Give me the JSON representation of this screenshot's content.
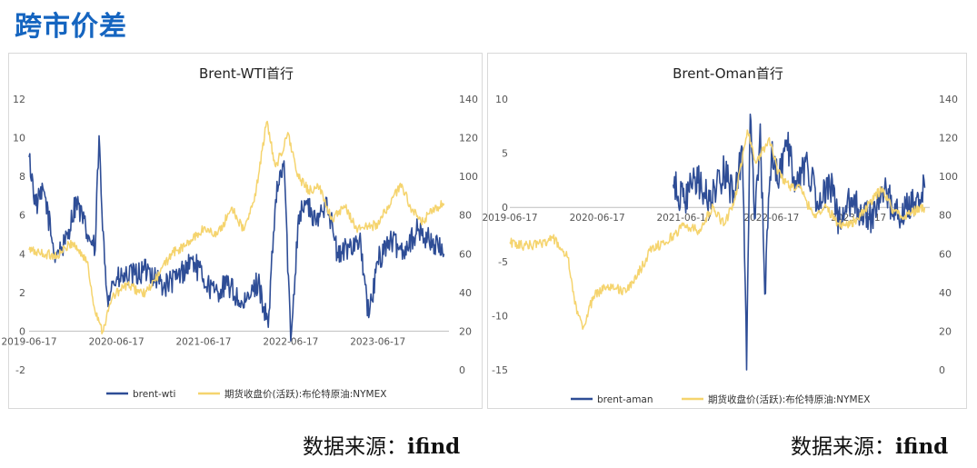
{
  "page": {
    "heading": "跨市价差",
    "source_left": "数据来源：",
    "source_left_name": "ifind",
    "source_right": "数据来源：",
    "source_right_name": "ifind"
  },
  "colors": {
    "blue": "#2e4d96",
    "gold": "#f5d46e",
    "heading": "#1565c0"
  },
  "chart_data": [
    {
      "type": "line",
      "title": "Brent-WTI首行",
      "xlabel": "",
      "ylabel": "",
      "x_ticks": [
        "2019-06-17",
        "2020-06-17",
        "2021-06-17",
        "2022-06-17",
        "2023-06-17"
      ],
      "y_left_ticks": [
        "12",
        "10",
        "8",
        "6",
        "4",
        "2",
        "0",
        "-2"
      ],
      "y_right_ticks": [
        "140",
        "120",
        "100",
        "80",
        "60",
        "40",
        "20",
        "0"
      ],
      "ylim_left": [
        -2,
        12
      ],
      "ylim_right": [
        0,
        140
      ],
      "grid": false,
      "legend_position": "bottom",
      "series": [
        {
          "name": "brent-wti",
          "axis": "left",
          "color": "#2e4d96",
          "x": [
            "2019-06-17",
            "2019-07-15",
            "2019-08-20",
            "2019-10-01",
            "2019-11-15",
            "2020-01-01",
            "2020-02-15",
            "2020-03-20",
            "2020-04-05",
            "2020-04-20",
            "2020-05-10",
            "2020-06-01",
            "2020-07-01",
            "2020-09-01",
            "2020-11-01",
            "2021-01-01",
            "2021-03-01",
            "2021-05-01",
            "2021-06-17",
            "2021-08-01",
            "2021-10-01",
            "2021-12-01",
            "2022-02-01",
            "2022-03-15",
            "2022-04-15",
            "2022-05-20",
            "2022-06-17",
            "2022-07-20",
            "2022-08-20",
            "2022-10-01",
            "2022-11-15",
            "2023-01-01",
            "2023-02-15",
            "2023-04-01",
            "2023-05-10",
            "2023-06-17",
            "2023-08-01",
            "2023-10-01",
            "2023-12-01",
            "2024-02-01",
            "2024-03-20"
          ],
          "y": [
            9,
            6.5,
            7.2,
            4,
            4.5,
            6.8,
            5,
            4.2,
            10.1,
            5.2,
            1.8,
            2.5,
            2.7,
            2.9,
            3.2,
            2.3,
            2.8,
            3.7,
            2.7,
            2,
            2.4,
            1.2,
            2.6,
            0.2,
            6.8,
            8.8,
            -0.5,
            6,
            6.7,
            5.5,
            6.9,
            3.8,
            4.4,
            4.8,
            0.7,
            3.6,
            4.7,
            4.2,
            5.2,
            4.6,
            4
          ]
        },
        {
          "name": "期货收盘价(活跃):布伦特原油:NYMEX",
          "axis": "right",
          "color": "#f5d46e",
          "x": [
            "2019-06-17",
            "2019-08-15",
            "2019-10-15",
            "2019-12-15",
            "2020-02-15",
            "2020-03-15",
            "2020-04-20",
            "2020-06-01",
            "2020-08-01",
            "2020-10-15",
            "2020-12-15",
            "2021-02-01",
            "2021-04-01",
            "2021-06-17",
            "2021-08-15",
            "2021-10-15",
            "2021-12-01",
            "2022-01-15",
            "2022-03-08",
            "2022-04-15",
            "2022-06-08",
            "2022-07-15",
            "2022-09-01",
            "2022-10-15",
            "2022-12-08",
            "2023-02-01",
            "2023-03-20",
            "2023-05-01",
            "2023-06-17",
            "2023-08-01",
            "2023-09-25",
            "2023-11-01",
            "2023-12-15",
            "2024-02-01",
            "2024-03-20"
          ],
          "y": [
            62,
            60,
            59,
            66,
            56,
            33,
            20,
            38,
            44,
            39,
            50,
            60,
            64,
            73,
            70,
            84,
            72,
            87,
            128,
            105,
            122,
            100,
            93,
            94,
            78,
            84,
            73,
            74,
            75,
            85,
            96,
            84,
            76,
            82,
            86
          ]
        }
      ]
    },
    {
      "type": "line",
      "title": "Brent-Oman首行",
      "xlabel": "",
      "ylabel": "",
      "x_ticks": [
        "2019-06-17",
        "2020-06-17",
        "2021-06-17",
        "2022-06-17",
        "2023-06-17"
      ],
      "y_left_ticks": [
        "10",
        "5",
        "0",
        "-5",
        "-10",
        "-15"
      ],
      "y_right_ticks": [
        "140",
        "120",
        "100",
        "80",
        "60",
        "40",
        "20",
        "0"
      ],
      "ylim_left": [
        -15,
        10
      ],
      "ylim_right": [
        0,
        140
      ],
      "grid": false,
      "legend_position": "bottom",
      "series": [
        {
          "name": "brent-aman",
          "axis": "left",
          "color": "#2e4d96",
          "x": [
            "2021-05-01",
            "2021-06-17",
            "2021-08-01",
            "2021-10-01",
            "2021-12-01",
            "2022-01-15",
            "2022-02-15",
            "2022-03-05",
            "2022-03-20",
            "2022-04-10",
            "2022-05-01",
            "2022-05-20",
            "2022-06-17",
            "2022-07-20",
            "2022-08-20",
            "2022-10-01",
            "2022-11-15",
            "2023-01-01",
            "2023-02-15",
            "2023-04-01",
            "2023-05-15",
            "2023-06-17",
            "2023-08-01",
            "2023-10-01",
            "2023-12-01",
            "2024-02-01",
            "2024-03-20"
          ],
          "y": [
            2.1,
            0.4,
            2.8,
            0.6,
            3.3,
            0.8,
            5.5,
            -15,
            8.6,
            -1,
            7.7,
            -8,
            5.2,
            2.8,
            6.2,
            1.9,
            4.1,
            -0.4,
            2.5,
            -1.8,
            0.9,
            -0.2,
            -1.1,
            1.4,
            -0.7,
            0.4,
            1.8
          ]
        },
        {
          "name": "期货收盘价(活跃):布伦特原油:NYMEX",
          "axis": "right",
          "color": "#f5d46e",
          "x": [
            "2019-06-17",
            "2019-08-15",
            "2019-10-15",
            "2019-12-15",
            "2020-02-15",
            "2020-03-15",
            "2020-04-20",
            "2020-06-01",
            "2020-08-01",
            "2020-10-15",
            "2020-12-15",
            "2021-02-01",
            "2021-04-01",
            "2021-06-17",
            "2021-08-15",
            "2021-10-15",
            "2021-12-01",
            "2022-01-15",
            "2022-03-08",
            "2022-04-15",
            "2022-06-08",
            "2022-07-15",
            "2022-09-01",
            "2022-10-15",
            "2022-12-08",
            "2023-02-01",
            "2023-03-20",
            "2023-05-01",
            "2023-06-17",
            "2023-08-01",
            "2023-09-25",
            "2023-11-01",
            "2023-12-15",
            "2024-02-01",
            "2024-03-20"
          ],
          "y": [
            66,
            64,
            65,
            68,
            58,
            34,
            22,
            38,
            44,
            40,
            52,
            63,
            66,
            75,
            72,
            84,
            75,
            88,
            124,
            107,
            120,
            102,
            95,
            94,
            80,
            84,
            76,
            75,
            78,
            86,
            94,
            84,
            79,
            82,
            84
          ]
        }
      ]
    }
  ]
}
